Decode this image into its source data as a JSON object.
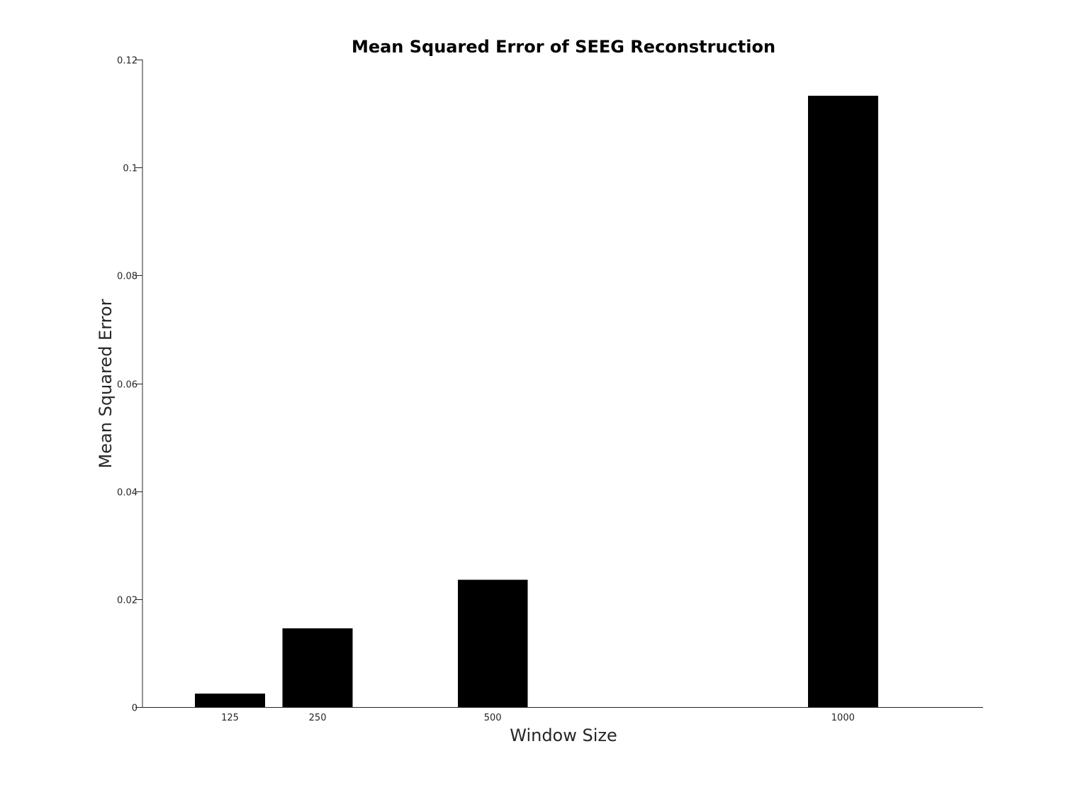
{
  "chart_data": {
    "type": "bar",
    "title": "Mean Squared Error of SEEG Reconstruction",
    "xlabel": "Window Size",
    "ylabel": "Mean Squared Error",
    "x": [
      125,
      250,
      500,
      1000
    ],
    "x_tick_labels": [
      "125",
      "250",
      "500",
      "1000"
    ],
    "xlim": [
      0,
      1200
    ],
    "values": [
      0.0025,
      0.0146,
      0.0236,
      0.1133
    ],
    "ylim": [
      0,
      0.12
    ],
    "y_ticks": [
      0,
      0.02,
      0.04,
      0.06,
      0.08,
      0.1,
      0.12
    ],
    "y_tick_labels": [
      "0",
      "0.02",
      "0.04",
      "0.06",
      "0.08",
      "0.1",
      "0.12"
    ],
    "bar_color": "#000000",
    "grid": false,
    "legend": false
  }
}
